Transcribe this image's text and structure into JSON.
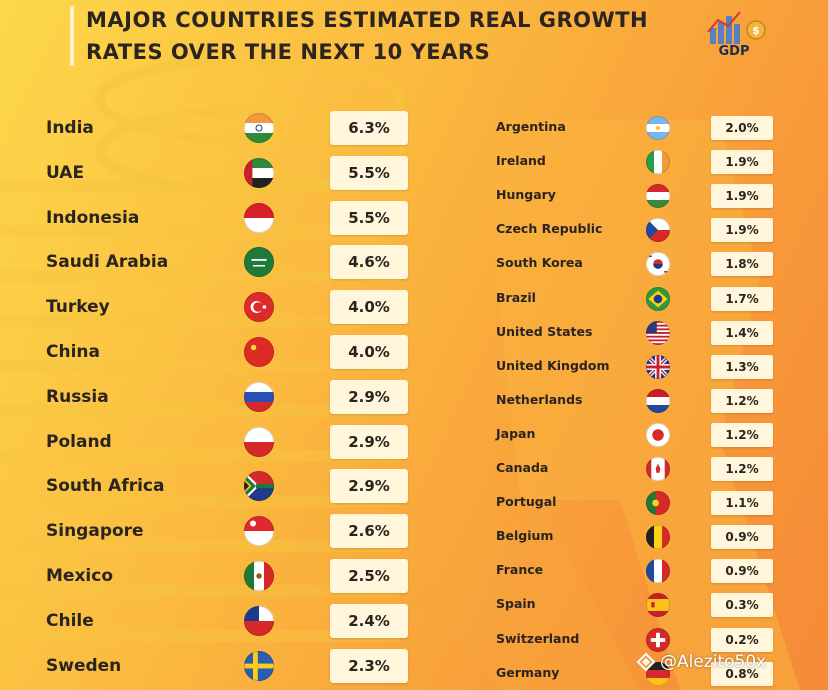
{
  "header": {
    "title_line1": "MAJOR COUNTRIES ESTIMATED REAL GROWTH",
    "title_line2": "RATES OVER THE NEXT 10 YEARS",
    "logo_text": "GDP"
  },
  "left_list": [
    {
      "country": "India",
      "value": "6.3%",
      "flag": "india-flag"
    },
    {
      "country": "UAE",
      "value": "5.5%",
      "flag": "uae-flag"
    },
    {
      "country": "Indonesia",
      "value": "5.5%",
      "flag": "indonesia-flag"
    },
    {
      "country": "Saudi Arabia",
      "value": "4.6%",
      "flag": "saudi-arabia-flag"
    },
    {
      "country": "Turkey",
      "value": "4.0%",
      "flag": "turkey-flag"
    },
    {
      "country": "China",
      "value": "4.0%",
      "flag": "china-flag"
    },
    {
      "country": "Russia",
      "value": "2.9%",
      "flag": "russia-flag"
    },
    {
      "country": "Poland",
      "value": "2.9%",
      "flag": "poland-flag"
    },
    {
      "country": "South Africa",
      "value": "2.9%",
      "flag": "south-africa-flag"
    },
    {
      "country": "Singapore",
      "value": "2.6%",
      "flag": "singapore-flag"
    },
    {
      "country": "Mexico",
      "value": "2.5%",
      "flag": "mexico-flag"
    },
    {
      "country": "Chile",
      "value": "2.4%",
      "flag": "chile-flag"
    },
    {
      "country": "Sweden",
      "value": "2.3%",
      "flag": "sweden-flag"
    }
  ],
  "right_list": [
    {
      "country": "Argentina",
      "value": "2.0%",
      "flag": "argentina-flag"
    },
    {
      "country": "Ireland",
      "value": "1.9%",
      "flag": "ireland-flag"
    },
    {
      "country": "Hungary",
      "value": "1.9%",
      "flag": "hungary-flag"
    },
    {
      "country": "Czech Republic",
      "value": "1.9%",
      "flag": "czech-republic-flag"
    },
    {
      "country": "South Korea",
      "value": "1.8%",
      "flag": "south-korea-flag"
    },
    {
      "country": "Brazil",
      "value": "1.7%",
      "flag": "brazil-flag"
    },
    {
      "country": "United States",
      "value": "1.4%",
      "flag": "united-states-flag"
    },
    {
      "country": "United Kingdom",
      "value": "1.3%",
      "flag": "united-kingdom-flag"
    },
    {
      "country": "Netherlands",
      "value": "1.2%",
      "flag": "netherlands-flag"
    },
    {
      "country": "Japan",
      "value": "1.2%",
      "flag": "japan-flag"
    },
    {
      "country": "Canada",
      "value": "1.2%",
      "flag": "canada-flag"
    },
    {
      "country": "Portugal",
      "value": "1.1%",
      "flag": "portugal-flag"
    },
    {
      "country": "Belgium",
      "value": "0.9%",
      "flag": "belgium-flag"
    },
    {
      "country": "France",
      "value": "0.9%",
      "flag": "france-flag"
    },
    {
      "country": "Spain",
      "value": "0.3%",
      "flag": "spain-flag"
    },
    {
      "country": "Switzerland",
      "value": "0.2%",
      "flag": "switzerland-flag"
    },
    {
      "country": "Germany",
      "value": "0.8%",
      "flag": "germany-flag"
    }
  ],
  "watermark": {
    "text": "@Alezito50x"
  }
}
